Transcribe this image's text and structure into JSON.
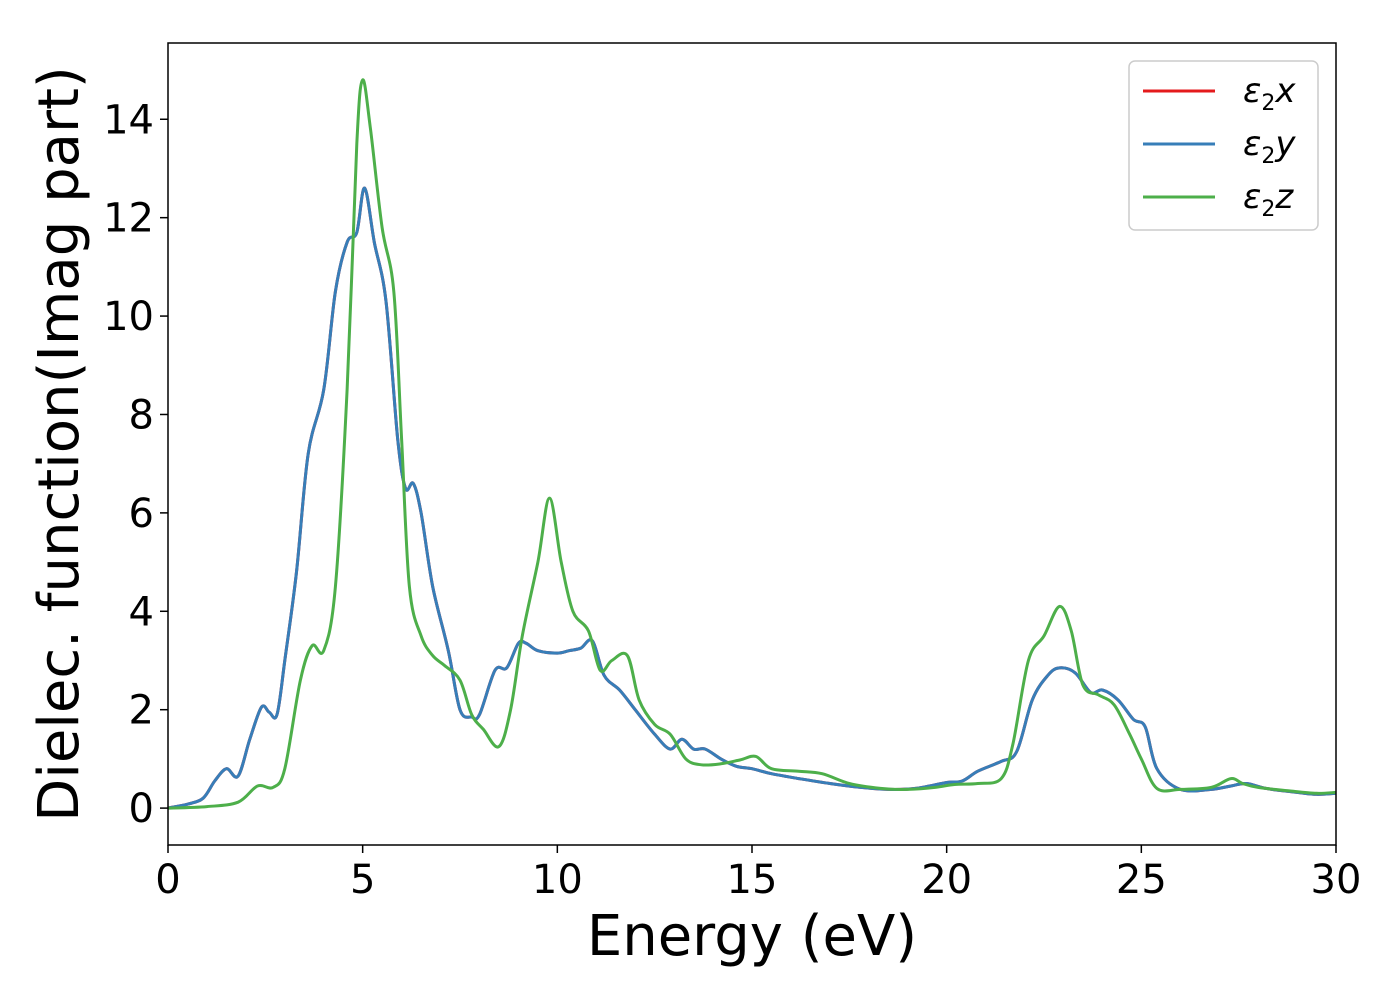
{
  "chart_data": {
    "type": "line",
    "title": "",
    "xlabel": "Energy (eV)",
    "ylabel": "Dielec. function(Imag part)",
    "xlim": [
      0,
      30
    ],
    "ylim": [
      -0.75,
      15.55
    ],
    "xticks": [
      0,
      5,
      10,
      15,
      20,
      25,
      30
    ],
    "yticks": [
      0,
      2,
      4,
      6,
      8,
      10,
      12,
      14
    ],
    "grid": false,
    "legend_position": "top-right",
    "series": [
      {
        "name": "ε2x",
        "name_base": "ε",
        "name_sub": "2",
        "name_tail": "x",
        "color": "#e41a1c",
        "x": [
          0,
          0.5,
          0.9,
          1.2,
          1.5,
          1.8,
          2.1,
          2.4,
          2.6,
          2.8,
          3.0,
          3.3,
          3.6,
          4.0,
          4.3,
          4.6,
          4.85,
          5.05,
          5.3,
          5.6,
          5.9,
          6.1,
          6.3,
          6.5,
          6.8,
          7.2,
          7.5,
          7.8,
          8.0,
          8.4,
          8.7,
          9.0,
          9.2,
          9.5,
          10.0,
          10.3,
          10.6,
          10.9,
          11.2,
          11.6,
          12.0,
          12.5,
          12.9,
          13.2,
          13.5,
          13.8,
          14.2,
          14.6,
          15.0,
          15.5,
          16.2,
          17.0,
          17.8,
          18.5,
          19.2,
          20.0,
          20.4,
          20.8,
          21.4,
          21.8,
          22.2,
          22.6,
          22.9,
          23.3,
          23.7,
          24.0,
          24.4,
          24.8,
          25.1,
          25.4,
          26.0,
          26.8,
          27.3,
          27.7,
          28.2,
          29.0,
          29.5,
          30.0
        ],
        "y": [
          0.0,
          0.08,
          0.2,
          0.55,
          0.8,
          0.65,
          1.4,
          2.05,
          1.95,
          1.9,
          3.0,
          4.8,
          7.2,
          8.5,
          10.5,
          11.5,
          11.7,
          12.6,
          11.5,
          10.3,
          7.5,
          6.5,
          6.6,
          6.0,
          4.5,
          3.2,
          2.0,
          1.85,
          1.9,
          2.8,
          2.85,
          3.35,
          3.35,
          3.2,
          3.15,
          3.2,
          3.25,
          3.4,
          2.7,
          2.4,
          2.0,
          1.5,
          1.2,
          1.4,
          1.2,
          1.2,
          1.0,
          0.85,
          0.8,
          0.7,
          0.6,
          0.5,
          0.42,
          0.38,
          0.4,
          0.52,
          0.55,
          0.75,
          0.95,
          1.15,
          2.2,
          2.7,
          2.85,
          2.75,
          2.35,
          2.4,
          2.2,
          1.8,
          1.65,
          0.8,
          0.38,
          0.38,
          0.45,
          0.5,
          0.4,
          0.32,
          0.28,
          0.3
        ]
      },
      {
        "name": "ε2y",
        "name_base": "ε",
        "name_sub": "2",
        "name_tail": "y",
        "color": "#377eb8",
        "x": [
          0,
          0.5,
          0.9,
          1.2,
          1.5,
          1.8,
          2.1,
          2.4,
          2.6,
          2.8,
          3.0,
          3.3,
          3.6,
          4.0,
          4.3,
          4.6,
          4.85,
          5.05,
          5.3,
          5.6,
          5.9,
          6.1,
          6.3,
          6.5,
          6.8,
          7.2,
          7.5,
          7.8,
          8.0,
          8.4,
          8.7,
          9.0,
          9.2,
          9.5,
          10.0,
          10.3,
          10.6,
          10.9,
          11.2,
          11.6,
          12.0,
          12.5,
          12.9,
          13.2,
          13.5,
          13.8,
          14.2,
          14.6,
          15.0,
          15.5,
          16.2,
          17.0,
          17.8,
          18.5,
          19.2,
          20.0,
          20.4,
          20.8,
          21.4,
          21.8,
          22.2,
          22.6,
          22.9,
          23.3,
          23.7,
          24.0,
          24.4,
          24.8,
          25.1,
          25.4,
          26.0,
          26.8,
          27.3,
          27.7,
          28.2,
          29.0,
          29.5,
          30.0
        ],
        "y": [
          0.0,
          0.08,
          0.2,
          0.55,
          0.8,
          0.65,
          1.4,
          2.05,
          1.95,
          1.9,
          3.0,
          4.8,
          7.2,
          8.5,
          10.5,
          11.5,
          11.7,
          12.6,
          11.5,
          10.3,
          7.5,
          6.5,
          6.6,
          6.0,
          4.5,
          3.2,
          2.0,
          1.85,
          1.9,
          2.8,
          2.85,
          3.35,
          3.35,
          3.2,
          3.15,
          3.2,
          3.25,
          3.4,
          2.7,
          2.4,
          2.0,
          1.5,
          1.2,
          1.4,
          1.2,
          1.2,
          1.0,
          0.85,
          0.8,
          0.7,
          0.6,
          0.5,
          0.42,
          0.38,
          0.4,
          0.52,
          0.55,
          0.75,
          0.95,
          1.15,
          2.2,
          2.7,
          2.85,
          2.75,
          2.35,
          2.4,
          2.2,
          1.8,
          1.65,
          0.8,
          0.38,
          0.38,
          0.45,
          0.5,
          0.4,
          0.32,
          0.28,
          0.3
        ]
      },
      {
        "name": "ε2z",
        "name_base": "ε",
        "name_sub": "2",
        "name_tail": "z",
        "color": "#4daf4a",
        "x": [
          0,
          1.0,
          1.8,
          2.3,
          2.7,
          3.0,
          3.4,
          3.7,
          4.0,
          4.3,
          4.6,
          4.85,
          5.0,
          5.2,
          5.5,
          5.8,
          6.0,
          6.2,
          6.5,
          6.8,
          7.1,
          7.5,
          7.8,
          8.1,
          8.5,
          8.8,
          9.1,
          9.5,
          9.8,
          10.1,
          10.4,
          10.8,
          11.1,
          11.4,
          11.8,
          12.1,
          12.5,
          12.9,
          13.3,
          13.7,
          14.2,
          14.7,
          15.1,
          15.5,
          16.2,
          16.8,
          17.5,
          18.3,
          19.0,
          19.7,
          20.2,
          20.8,
          21.4,
          21.7,
          22.1,
          22.5,
          22.9,
          23.2,
          23.5,
          23.9,
          24.3,
          24.7,
          25.0,
          25.4,
          26.0,
          26.8,
          27.3,
          27.6,
          28.0,
          28.8,
          29.5,
          30.0
        ],
        "y": [
          0.0,
          0.03,
          0.12,
          0.45,
          0.42,
          0.8,
          2.6,
          3.3,
          3.2,
          4.5,
          8.5,
          13.5,
          14.8,
          13.8,
          11.8,
          10.5,
          7.5,
          4.5,
          3.5,
          3.1,
          2.9,
          2.6,
          1.9,
          1.6,
          1.25,
          2.0,
          3.5,
          5.0,
          6.3,
          5.0,
          4.0,
          3.6,
          2.8,
          3.0,
          3.1,
          2.2,
          1.7,
          1.5,
          1.0,
          0.88,
          0.9,
          0.98,
          1.05,
          0.8,
          0.75,
          0.7,
          0.5,
          0.4,
          0.38,
          0.42,
          0.48,
          0.5,
          0.6,
          1.3,
          3.0,
          3.5,
          4.1,
          3.6,
          2.5,
          2.3,
          2.1,
          1.5,
          1.0,
          0.4,
          0.38,
          0.42,
          0.6,
          0.5,
          0.42,
          0.35,
          0.3,
          0.32
        ]
      }
    ]
  }
}
